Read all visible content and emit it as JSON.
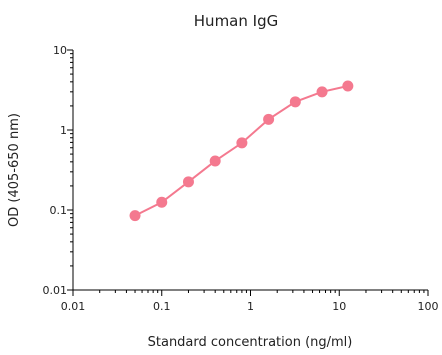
{
  "chart_data": {
    "type": "scatter",
    "title": "Human IgG",
    "xlabel": "Standard concentration (ng/ml)",
    "ylabel": "OD (405-650 nm)",
    "x_scale": "log",
    "y_scale": "log",
    "xlim": [
      0.01,
      100
    ],
    "ylim": [
      0.01,
      10
    ],
    "x_ticks": [
      "0.01",
      "0.1",
      "1",
      "10",
      "100"
    ],
    "y_ticks": [
      "0.01",
      "0.1",
      "1",
      "10"
    ],
    "grid": false,
    "series": [
      {
        "color": "#f4798f",
        "line": true,
        "points": [
          {
            "x": 0.05,
            "y": 0.085
          },
          {
            "x": 0.1,
            "y": 0.125
          },
          {
            "x": 0.2,
            "y": 0.225
          },
          {
            "x": 0.4,
            "y": 0.41
          },
          {
            "x": 0.8,
            "y": 0.69
          },
          {
            "x": 1.6,
            "y": 1.36
          },
          {
            "x": 3.2,
            "y": 2.25
          },
          {
            "x": 6.4,
            "y": 3.0
          },
          {
            "x": 12.5,
            "y": 3.55
          }
        ]
      }
    ]
  }
}
